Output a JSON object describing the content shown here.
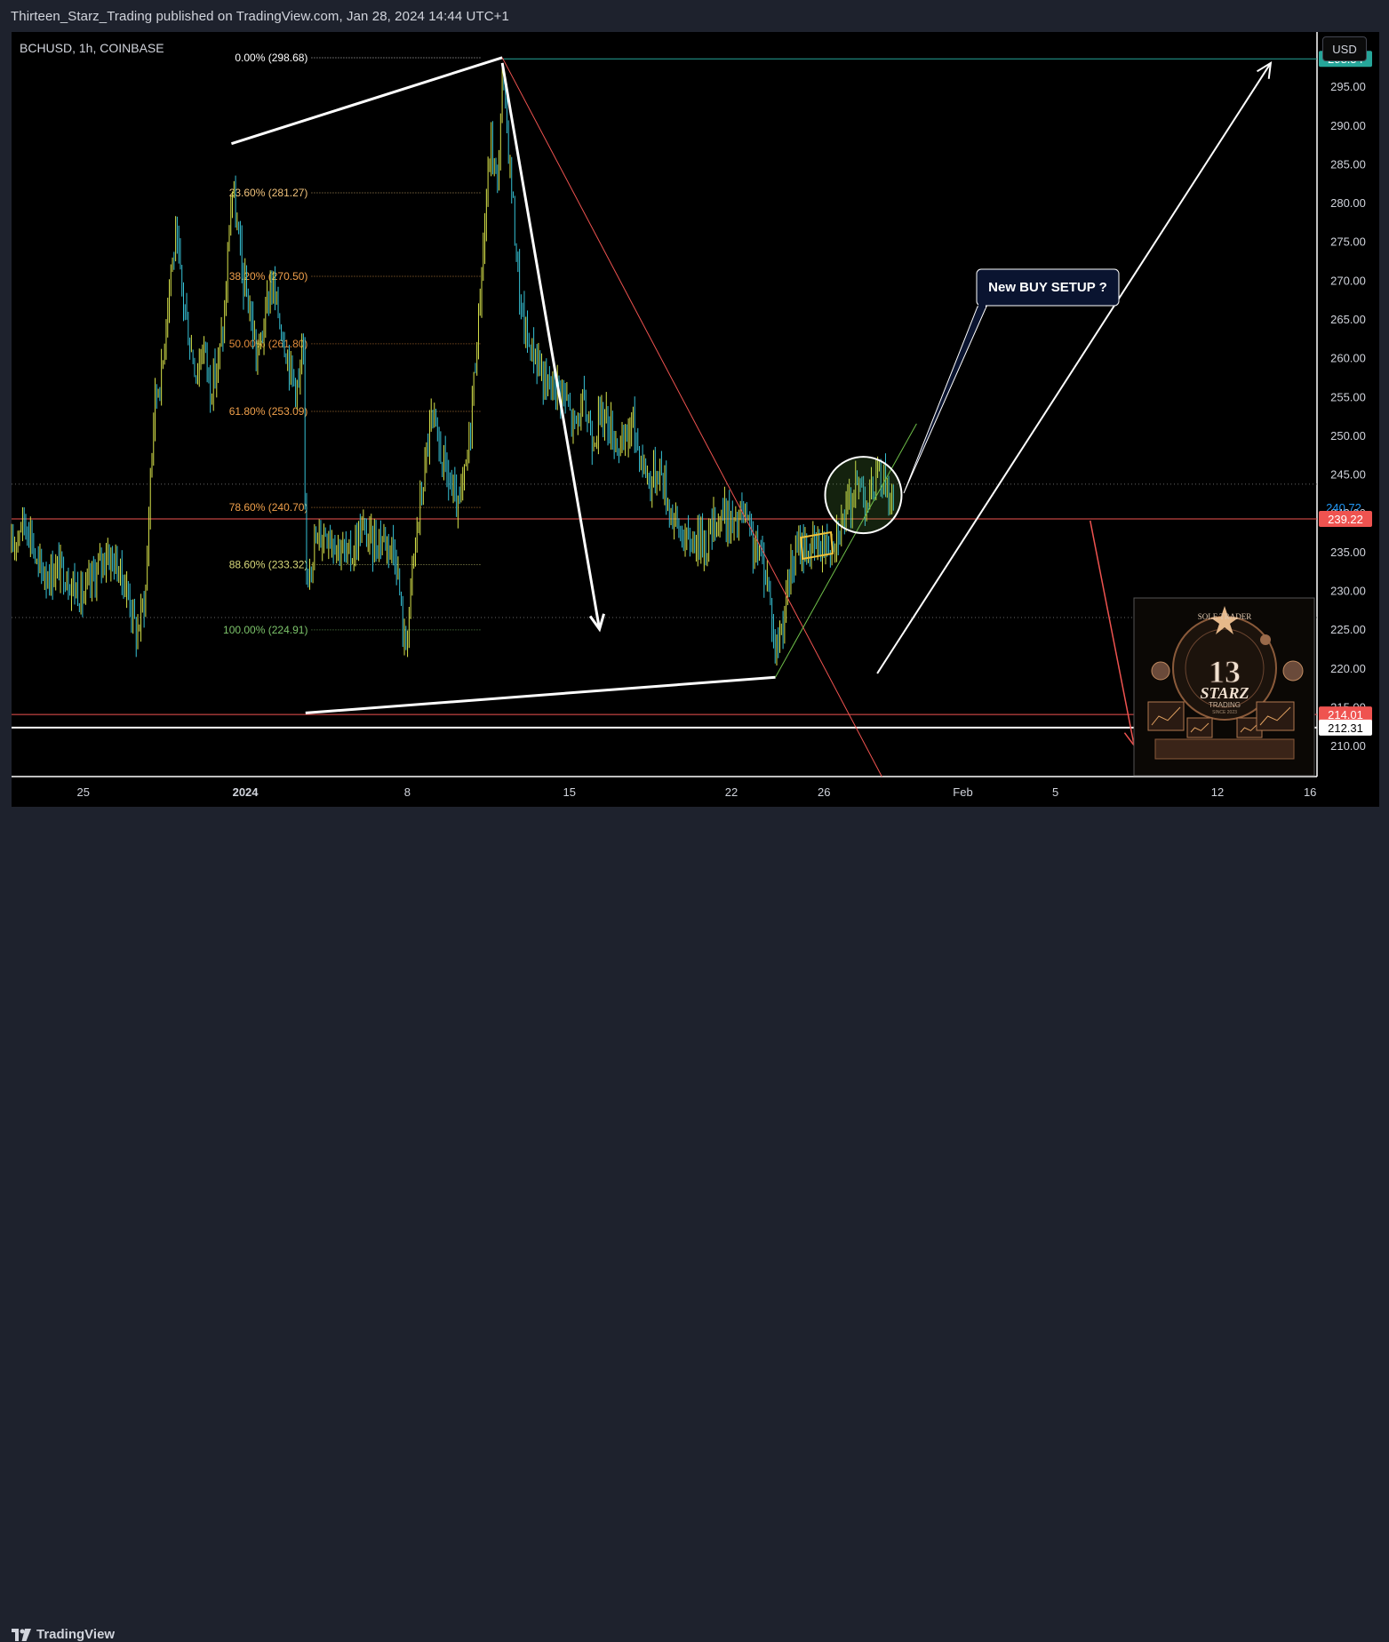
{
  "header": {
    "published_text": "Thirteen_Starz_Trading published on TradingView.com, Jan 28, 2024 14:44 UTC+1"
  },
  "symbol": "BCHUSD, 1h, COINBASE",
  "currency_button": "USD",
  "footer": {
    "brand": "TradingView",
    "logo_icon": "tradingview-logo-icon"
  },
  "colors": {
    "background": "#000000",
    "frame": "#1e222d",
    "candle_up": "#d8e34a",
    "candle_down": "#36c2d6",
    "resistance": "#26a69a",
    "support_red": "#ef5350",
    "annotation_white": "#ffffff",
    "fib_label": "#c8b96e"
  },
  "callout": {
    "text": "New BUY SETUP ?"
  },
  "logo_watermark": {
    "title": "SOLE TRADER",
    "brand": "STARZ",
    "sub": "TRADING",
    "since": "SINCE 2023",
    "number": "13"
  },
  "chart_data": {
    "type": "candlestick",
    "symbol": "BCHUSD",
    "interval": "1h",
    "exchange": "COINBASE",
    "ylim": [
      206,
      302
    ],
    "y_ticks": [
      210,
      215,
      220,
      225,
      230,
      235,
      240,
      245,
      250,
      255,
      260,
      265,
      270,
      275,
      280,
      285,
      290,
      295
    ],
    "y_tick_labels": [
      "210.00",
      "215.00",
      "220.00",
      "225.00",
      "230.00",
      "235.00",
      "240.00",
      "245.00",
      "250.00",
      "255.00",
      "260.00",
      "265.00",
      "270.00",
      "275.00",
      "280.00",
      "285.00",
      "290.00",
      "295.00"
    ],
    "x_ticks": [
      {
        "label": "25",
        "day": -7
      },
      {
        "label": "2024",
        "day": 0
      },
      {
        "label": "8",
        "day": 7
      },
      {
        "label": "15",
        "day": 14
      },
      {
        "label": "22",
        "day": 21
      },
      {
        "label": "26",
        "day": 25
      },
      {
        "label": "Feb",
        "day": 31
      },
      {
        "label": "5",
        "day": 35
      },
      {
        "label": "12",
        "day": 42
      },
      {
        "label": "16",
        "day": 46
      }
    ],
    "x_range_days": [
      -10.1,
      46.3
    ],
    "price_path": [
      [
        -10.1,
        235
      ],
      [
        -9.7,
        239
      ],
      [
        -9.3,
        238
      ],
      [
        -9.0,
        233
      ],
      [
        -8.5,
        232
      ],
      [
        -8.0,
        233
      ],
      [
        -7.5,
        231
      ],
      [
        -7.0,
        229
      ],
      [
        -6.5,
        232
      ],
      [
        -6.0,
        235
      ],
      [
        -5.5,
        233
      ],
      [
        -5.0,
        229
      ],
      [
        -4.7,
        224
      ],
      [
        -4.3,
        230
      ],
      [
        -4.1,
        245
      ],
      [
        -3.9,
        255
      ],
      [
        -3.6,
        258
      ],
      [
        -3.3,
        270
      ],
      [
        -3.0,
        275
      ],
      [
        -2.7,
        268
      ],
      [
        -2.4,
        262
      ],
      [
        -2.1,
        258
      ],
      [
        -1.8,
        262
      ],
      [
        -1.5,
        256
      ],
      [
        -1.2,
        259
      ],
      [
        -0.9,
        265
      ],
      [
        -0.6,
        282
      ],
      [
        -0.4,
        278
      ],
      [
        -0.1,
        270
      ],
      [
        0.2,
        266
      ],
      [
        0.5,
        260
      ],
      [
        0.8,
        264
      ],
      [
        1.1,
        270
      ],
      [
        1.4,
        266
      ],
      [
        1.7,
        262
      ],
      [
        2.0,
        258
      ],
      [
        2.3,
        256
      ],
      [
        2.5,
        262
      ],
      [
        2.6,
        232
      ],
      [
        3.0,
        236
      ],
      [
        3.5,
        238
      ],
      [
        4.0,
        236
      ],
      [
        4.5,
        234
      ],
      [
        5.0,
        238
      ],
      [
        5.5,
        236
      ],
      [
        6.0,
        237
      ],
      [
        6.5,
        235
      ],
      [
        6.9,
        222
      ],
      [
        7.3,
        235
      ],
      [
        7.6,
        242
      ],
      [
        8.0,
        252
      ],
      [
        8.4,
        248
      ],
      [
        8.8,
        244
      ],
      [
        9.2,
        240
      ],
      [
        9.6,
        247
      ],
      [
        10.0,
        262
      ],
      [
        10.3,
        275
      ],
      [
        10.6,
        288
      ],
      [
        10.9,
        282
      ],
      [
        11.1,
        296
      ],
      [
        11.3,
        290
      ],
      [
        11.6,
        278
      ],
      [
        11.9,
        266
      ],
      [
        12.2,
        262
      ],
      [
        12.6,
        260
      ],
      [
        13.0,
        256
      ],
      [
        13.4,
        257
      ],
      [
        13.8,
        255
      ],
      [
        14.2,
        251
      ],
      [
        14.6,
        254
      ],
      [
        15.0,
        250
      ],
      [
        15.5,
        253
      ],
      [
        15.9,
        250
      ],
      [
        16.3,
        248
      ],
      [
        16.7,
        252
      ],
      [
        17.1,
        247
      ],
      [
        17.5,
        244
      ],
      [
        17.9,
        246
      ],
      [
        18.3,
        241
      ],
      [
        18.7,
        238
      ],
      [
        19.1,
        236
      ],
      [
        19.5,
        237
      ],
      [
        19.9,
        236
      ],
      [
        20.3,
        239
      ],
      [
        20.7,
        240
      ],
      [
        21.1,
        238
      ],
      [
        21.5,
        240
      ],
      [
        21.9,
        236
      ],
      [
        22.3,
        234
      ],
      [
        22.6,
        231
      ],
      [
        22.9,
        222
      ],
      [
        23.2,
        226
      ],
      [
        23.6,
        233
      ],
      [
        24.0,
        236
      ],
      [
        24.4,
        235
      ],
      [
        24.8,
        236
      ],
      [
        25.2,
        236
      ],
      [
        25.6,
        238
      ],
      [
        26.0,
        240
      ],
      [
        26.3,
        243
      ],
      [
        26.6,
        244
      ],
      [
        26.9,
        241
      ],
      [
        27.2,
        244
      ],
      [
        27.5,
        245
      ],
      [
        27.8,
        243
      ],
      [
        28.0,
        240
      ]
    ],
    "fib_levels": [
      {
        "label": "0.00% (298.68)",
        "price": 298.68,
        "color": "#ffffff"
      },
      {
        "label": "23.60% (281.27)",
        "price": 281.27,
        "color": "#f0c27b"
      },
      {
        "label": "38.20% (270.50)",
        "price": 270.5,
        "color": "#f0a04b"
      },
      {
        "label": "50.00% (261.80)",
        "price": 261.8,
        "color": "#e08b3b"
      },
      {
        "label": "61.80% (253.09)",
        "price": 253.09,
        "color": "#f0a04b"
      },
      {
        "label": "78.60% (240.70)",
        "price": 240.7,
        "color": "#f0a04b"
      },
      {
        "label": "88.60% (233.32)",
        "price": 233.32,
        "color": "#d8d87a"
      },
      {
        "label": "100.00% (224.91)",
        "price": 224.91,
        "color": "#7cc36a"
      }
    ],
    "price_badges": [
      {
        "text": "298.54",
        "price": 298.54,
        "bg": "#26a69a",
        "fg": "#ffffff"
      },
      {
        "text": "240.72",
        "price": 240.72,
        "bg": "#2196f3",
        "fg": "#2196f3"
      },
      {
        "text": "239.22",
        "price": 239.22,
        "bg": "#ef5350",
        "fg": "#ffffff"
      },
      {
        "text": "214.01",
        "price": 214.01,
        "bg": "#ef5350",
        "fg": "#ffffff"
      },
      {
        "text": "212.31",
        "price": 212.31,
        "bg": "#ffffff",
        "fg": "#000000"
      }
    ],
    "horizontal_lines": [
      {
        "price": 298.54,
        "color": "#26a69a",
        "from_day": 11.1
      },
      {
        "price": 239.22,
        "color": "#ef5350",
        "from_day": -10.1
      },
      {
        "price": 214.01,
        "color": "#ef5350",
        "from_day": -10.1
      },
      {
        "price": 212.31,
        "color": "#ffffff",
        "from_day": -10.1
      }
    ],
    "dotted_lines": [
      226.5,
      243.7
    ],
    "annotations": {
      "megaphone_upper": [
        [
          -0.6,
          287.6
        ],
        [
          11.1,
          298.7
        ]
      ],
      "megaphone_lower": [
        [
          2.6,
          214.2
        ],
        [
          22.9,
          218.8
        ]
      ],
      "down_arrow": [
        [
          11.1,
          298
        ],
        [
          15.3,
          225
        ]
      ],
      "red_trendline": [
        [
          11.1,
          298.7
        ],
        [
          27.5,
          206
        ]
      ],
      "green_trendline": [
        [
          22.9,
          218.8
        ],
        [
          29.0,
          251.5
        ]
      ],
      "up_arrow": [
        [
          27.3,
          219.3
        ],
        [
          44.3,
          298
        ]
      ],
      "red_down_arrow": [
        [
          36.5,
          239
        ],
        [
          38.4,
          210
        ]
      ],
      "circle_center": [
        26.7,
        242.3
      ],
      "flag_box": [
        [
          24.0,
          237.5
        ],
        [
          25.3,
          234.3
        ]
      ]
    }
  }
}
